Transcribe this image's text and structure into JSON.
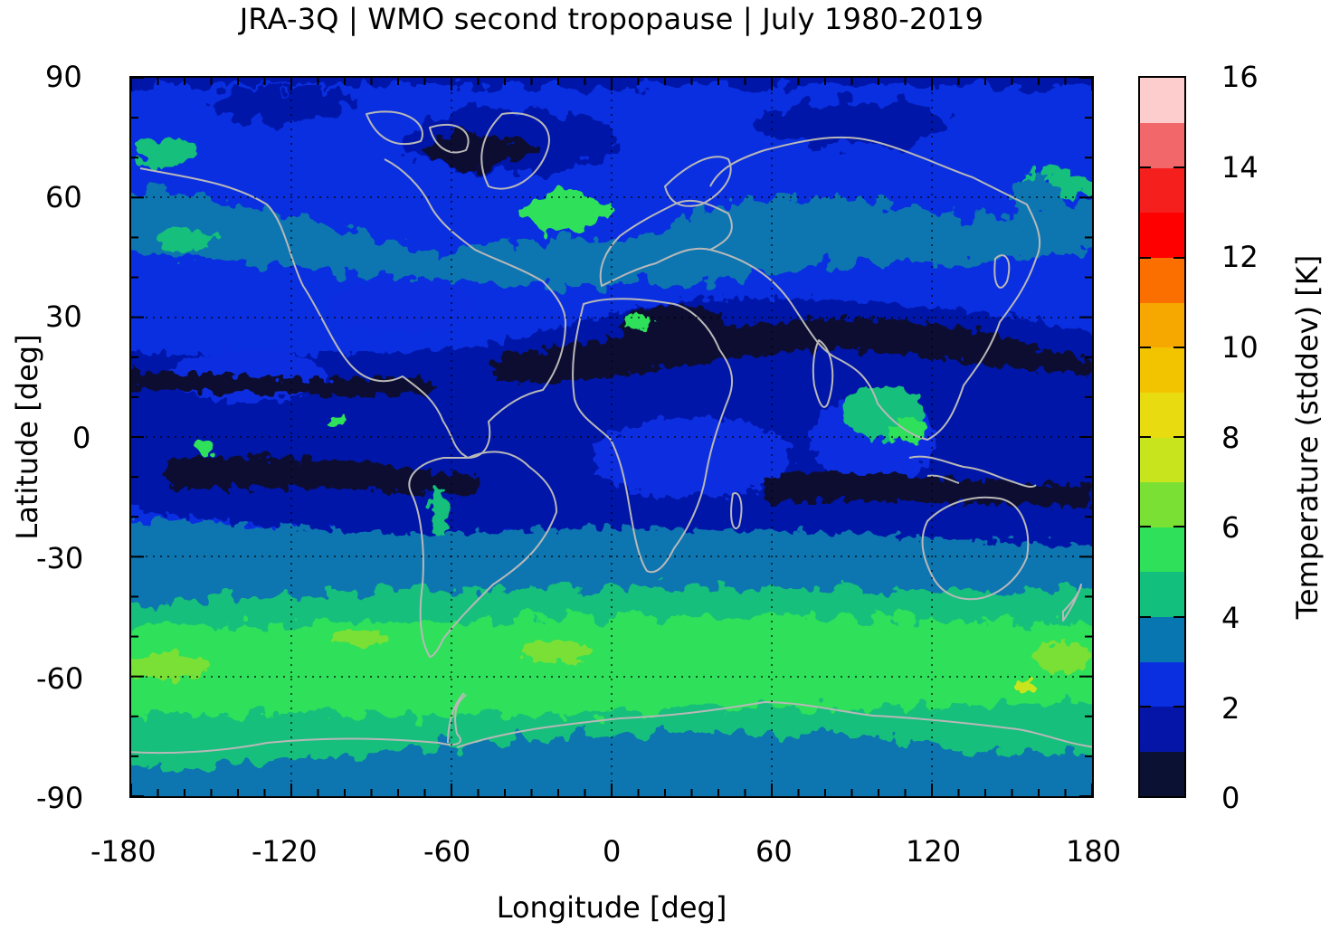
{
  "title": "JRA-3Q | WMO second tropopause | July 1980-2019",
  "axes": {
    "xlabel": "Longitude [deg]",
    "ylabel": "Latitude [deg]",
    "xticks": [
      "-180",
      "-120",
      "-60",
      "0",
      "60",
      "120",
      "180"
    ],
    "yticks": [
      "90",
      "60",
      "30",
      "0",
      "-30",
      "-60",
      "-90"
    ],
    "xlim": [
      -180,
      180
    ],
    "ylim": [
      -90,
      90
    ]
  },
  "colorbar": {
    "label": "Temperature (stddev) [K]",
    "ticks": [
      "0",
      "2",
      "4",
      "6",
      "8",
      "10",
      "12",
      "14",
      "16"
    ],
    "range": [
      0,
      16
    ],
    "colors": [
      "#0b1133",
      "#0515a8",
      "#0a2fe0",
      "#0876b0",
      "#12bf7c",
      "#2ee05a",
      "#7ae034",
      "#c8e41c",
      "#e8dc10",
      "#f2c400",
      "#f7a800",
      "#fb6e00",
      "#fe0000",
      "#f5201e",
      "#f2686a",
      "#fdcccc"
    ]
  },
  "map": {
    "colors": {
      "dark": "#0b1133",
      "deep_blue": "#0515a8",
      "blue": "#0a2fe0",
      "steel": "#0876b0",
      "teal": "#12bf7c",
      "green": "#2ee05a",
      "yellow_green": "#7ae034",
      "coast": "#b8b8b8",
      "grid": "#000000"
    }
  }
}
